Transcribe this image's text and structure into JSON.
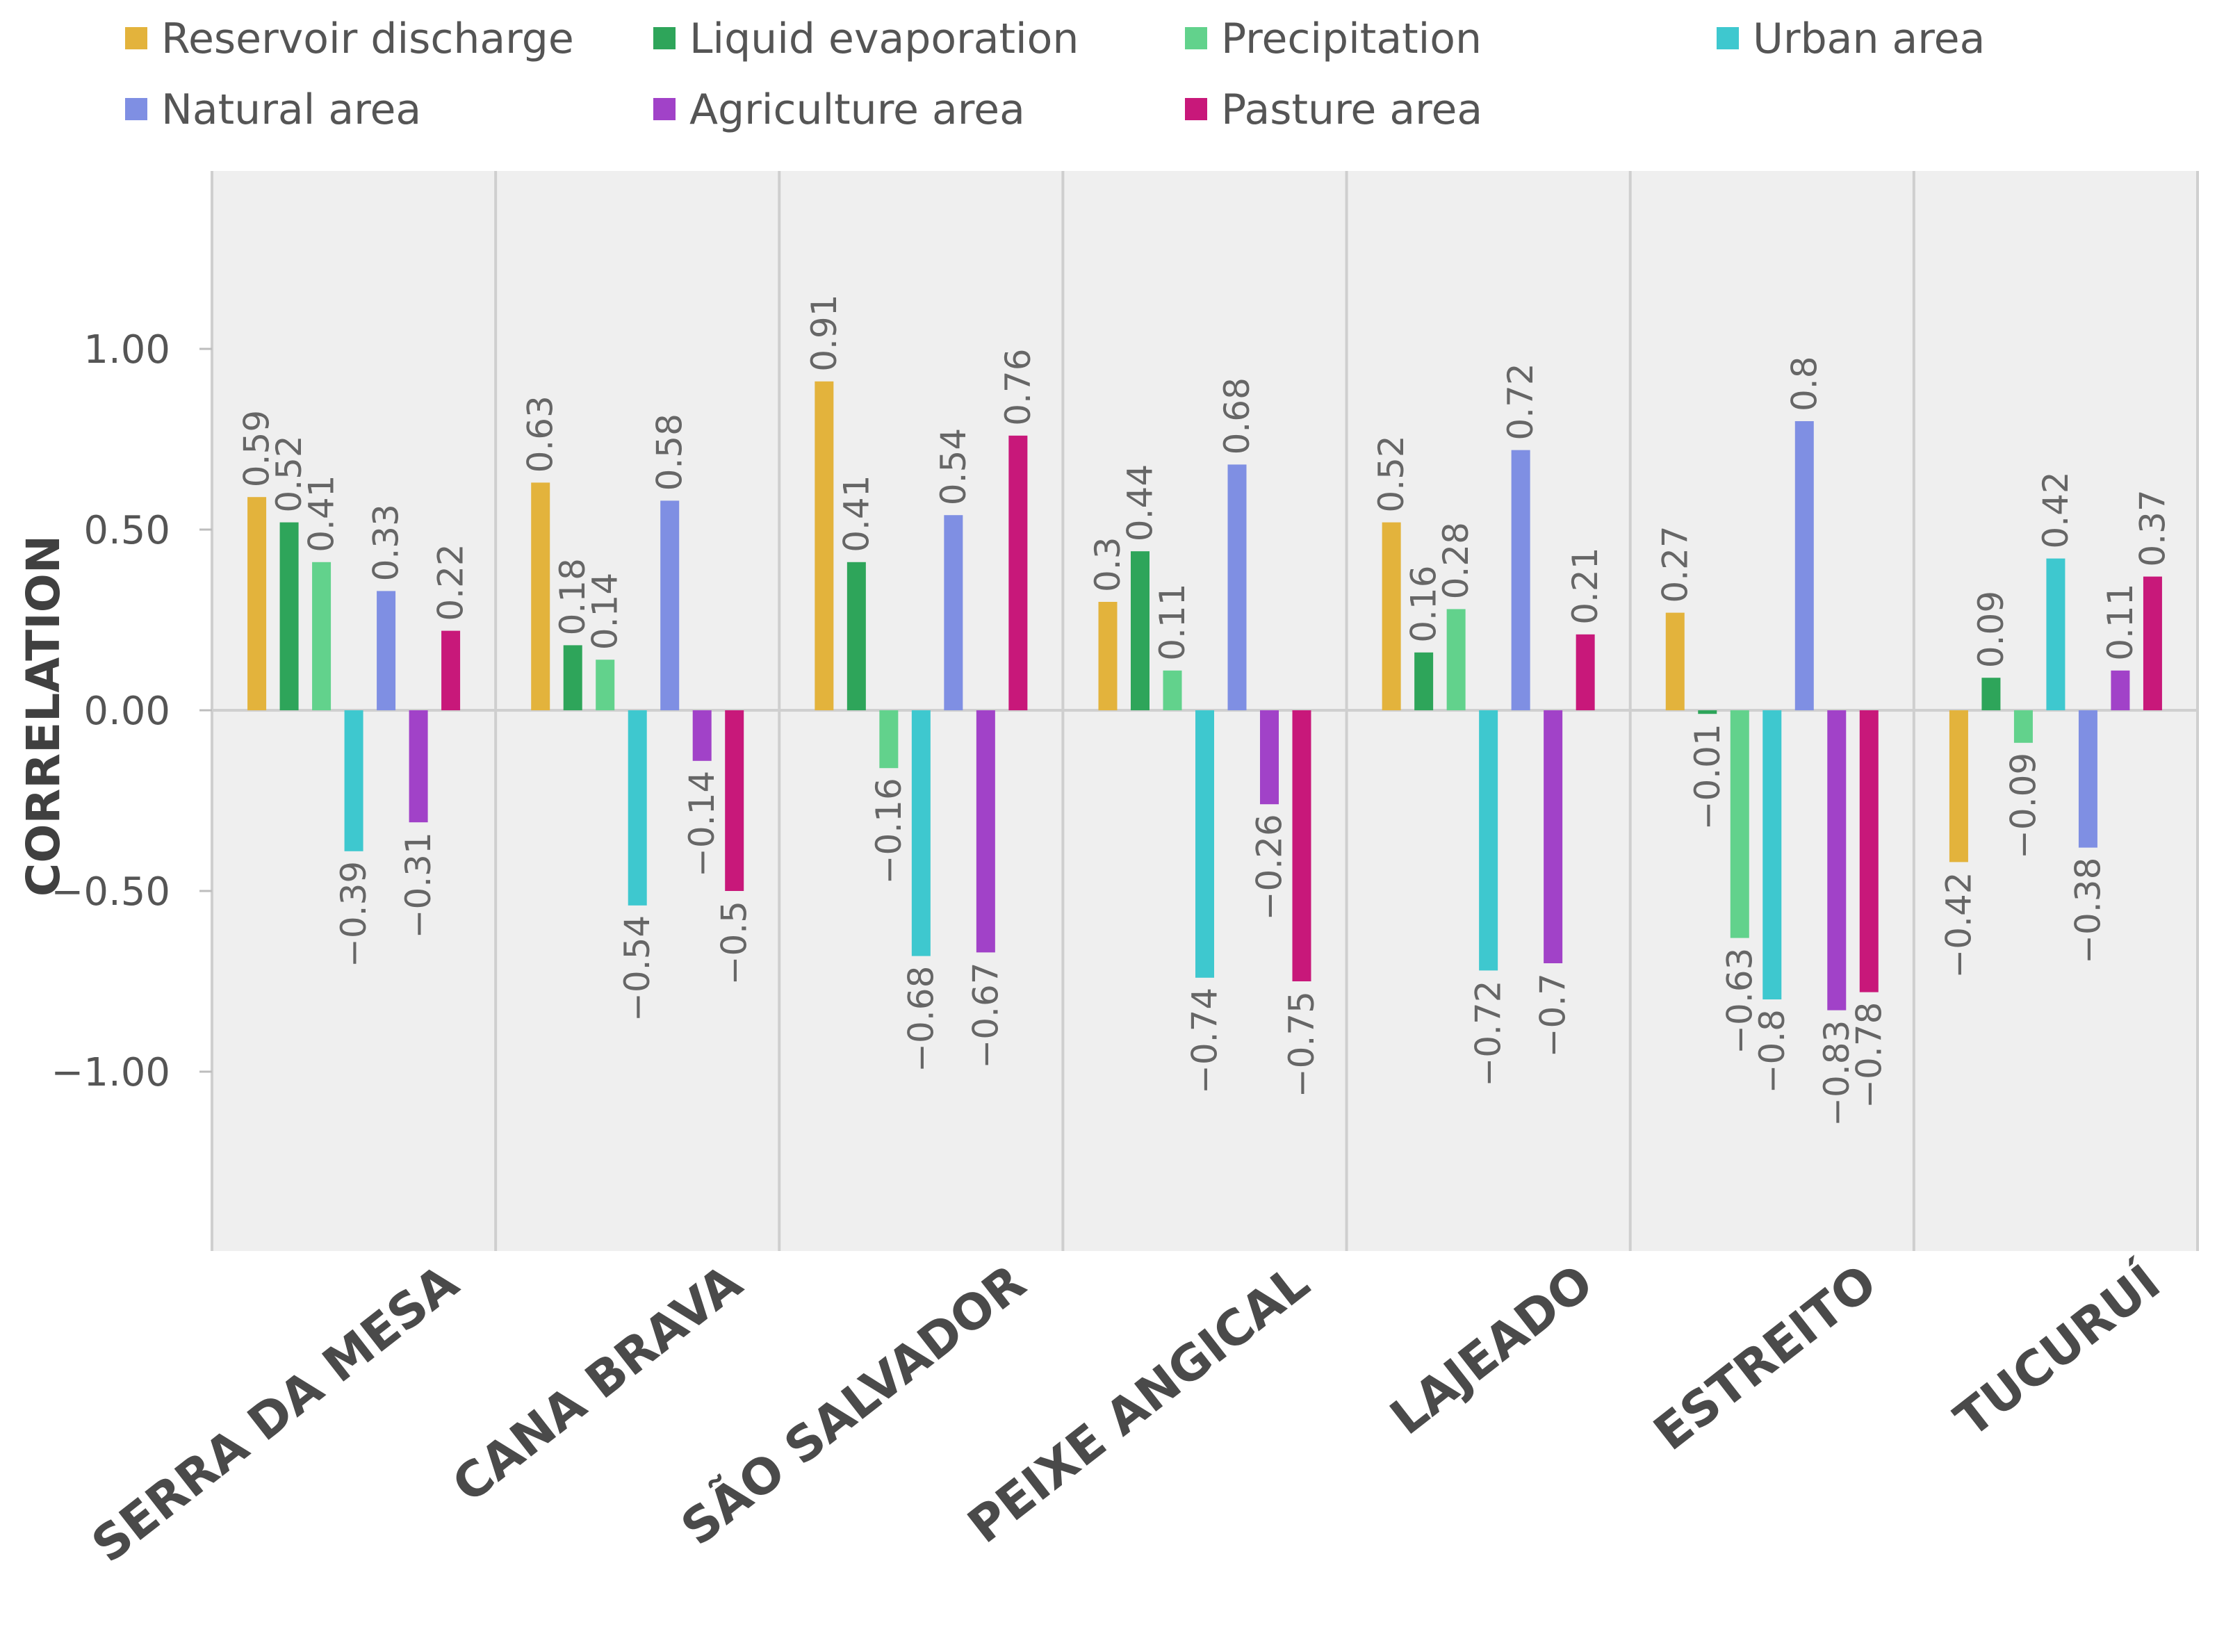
{
  "chart_data": {
    "type": "bar",
    "title": "",
    "xlabel": "",
    "ylabel": "CORRELATION",
    "ylim": [
      -1.5,
      1.5
    ],
    "yticks": [
      1.0,
      0.5,
      0.0,
      -0.5,
      -1.0
    ],
    "ytick_labels": [
      "1.00",
      "0.50",
      "0.00",
      "−0.50",
      "−1.00"
    ],
    "legend_position": "top",
    "categories": [
      "SERRA DA MESA",
      "CANA BRAVA",
      "SÃO SALVADOR",
      "PEIXE ANGICAL",
      "LAJEADO",
      "ESTREITO",
      "TUCURUÍ"
    ],
    "series": [
      {
        "name": "Reservoir discharge",
        "color": "#E3B33C",
        "values": [
          0.59,
          0.63,
          0.91,
          0.3,
          0.52,
          0.27,
          -0.42
        ]
      },
      {
        "name": "Liquid evaporation",
        "color": "#2EA55A",
        "values": [
          0.52,
          0.18,
          0.41,
          0.44,
          0.16,
          -0.01,
          0.09
        ]
      },
      {
        "name": "Precipitation",
        "color": "#62D28C",
        "values": [
          0.41,
          0.14,
          -0.16,
          0.11,
          0.28,
          -0.63,
          -0.09
        ]
      },
      {
        "name": "Urban area",
        "color": "#3EC8CF",
        "values": [
          -0.39,
          -0.54,
          -0.68,
          -0.74,
          -0.72,
          -0.8,
          0.42
        ]
      },
      {
        "name": "Natural area",
        "color": "#7F8FE3",
        "values": [
          0.33,
          0.58,
          0.54,
          0.68,
          0.72,
          0.8,
          -0.38
        ]
      },
      {
        "name": "Agriculture area",
        "color": "#A142C8",
        "values": [
          -0.31,
          -0.14,
          -0.67,
          -0.26,
          -0.7,
          -0.83,
          0.11
        ]
      },
      {
        "name": "Pasture area",
        "color": "#C8187A",
        "values": [
          0.22,
          -0.5,
          0.76,
          -0.75,
          0.21,
          -0.78,
          0.37
        ]
      }
    ]
  }
}
